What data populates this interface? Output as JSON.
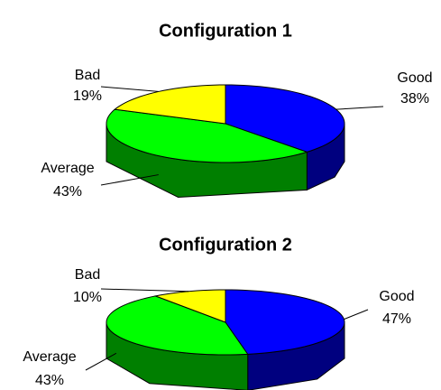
{
  "chart_data": [
    {
      "type": "pie",
      "title": "Configuration 1",
      "categories": [
        "Good",
        "Average",
        "Bad"
      ],
      "values": [
        38,
        43,
        19
      ],
      "value_labels": [
        "38%",
        "43%",
        "19%"
      ],
      "colors": [
        "#0000ff",
        "#00ff00",
        "#ffff00"
      ]
    },
    {
      "type": "pie",
      "title": "Configuration 2",
      "categories": [
        "Good",
        "Average",
        "Bad"
      ],
      "values": [
        47,
        43,
        10
      ],
      "value_labels": [
        "47%",
        "43%",
        "10%"
      ],
      "colors": [
        "#0000ff",
        "#00ff00",
        "#ffff00"
      ]
    }
  ]
}
